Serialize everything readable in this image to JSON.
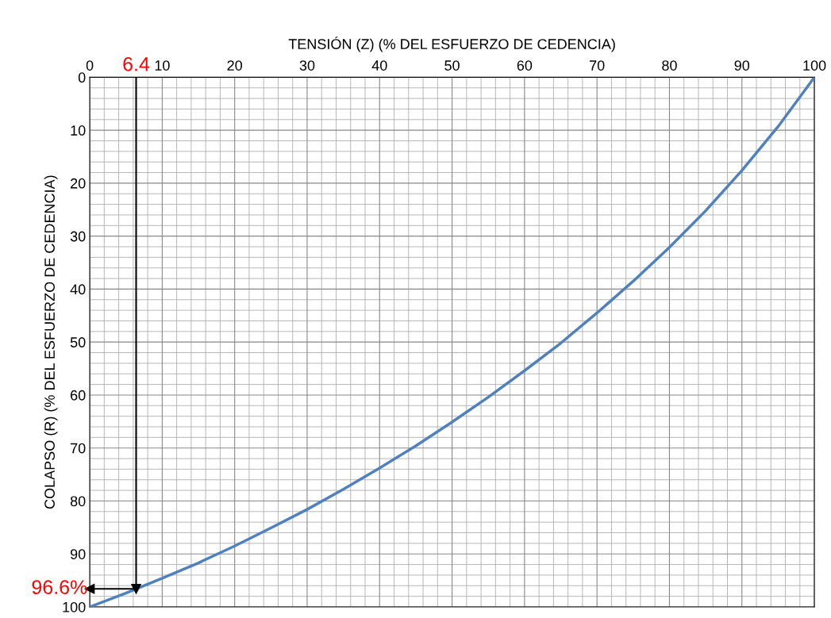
{
  "chart_data": {
    "type": "line",
    "xlabel": "TENSIÓN (Z) (% DEL ESFUERZO DE CEDENCIA)",
    "ylabel": "COLAPSO (R) (% DEL ESFUERZO DE CEDENCIA)",
    "x": [
      0,
      5,
      10,
      15,
      20,
      25,
      30,
      35,
      40,
      45,
      50,
      55,
      60,
      65,
      70,
      75,
      80,
      85,
      90,
      95,
      100
    ],
    "series": [
      {
        "color": "#4f81bd",
        "values": [
          100,
          97.4,
          94.6,
          91.7,
          88.5,
          85.1,
          81.6,
          77.8,
          73.8,
          69.6,
          65.1,
          60.4,
          55.4,
          50.2,
          44.5,
          38.5,
          32.1,
          25.2,
          17.6,
          9.3,
          0
        ]
      }
    ],
    "xlim": [
      0,
      100
    ],
    "xticks": [
      0,
      10,
      20,
      30,
      40,
      50,
      60,
      70,
      80,
      90,
      100
    ],
    "ylim": [
      100,
      0
    ],
    "yticks": [
      0,
      10,
      20,
      30,
      40,
      50,
      60,
      70,
      80,
      90,
      100
    ],
    "grid": true,
    "legend": false,
    "ref_lines": [
      {
        "axis": "x",
        "value": 6.4,
        "label": "6.4",
        "color": "#000000"
      },
      {
        "axis": "y",
        "value": 96.6,
        "label": "96.6%",
        "color": "#000000"
      }
    ]
  }
}
